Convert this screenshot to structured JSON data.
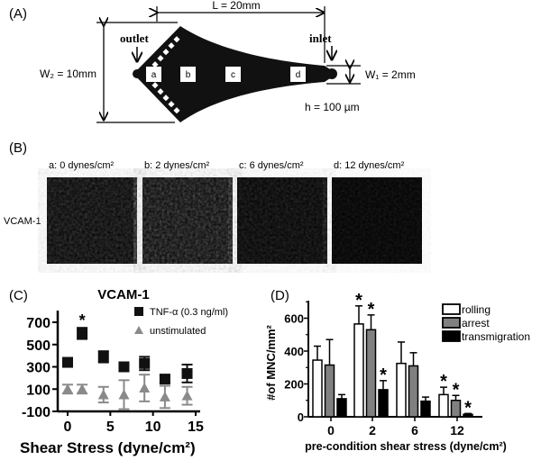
{
  "panelA": {
    "label": "(A)",
    "length": "L = 20mm",
    "outlet": "outlet",
    "inlet": "inlet",
    "w2": "W₂ = 10mm",
    "w1": "W₁ = 2mm",
    "height": "h = 100 µm",
    "regions": [
      "a",
      "b",
      "c",
      "d"
    ]
  },
  "panelB": {
    "label": "(B)",
    "row_label": "VCAM-1",
    "images": [
      {
        "caption": "a:  0 dynes/cm²",
        "brightness": 0.55
      },
      {
        "caption": "b:  2 dynes/cm²",
        "brightness": 0.75
      },
      {
        "caption": "c:  6 dynes/cm²",
        "brightness": 0.4
      },
      {
        "caption": "d:  12 dynes/cm²",
        "brightness": 0.25
      }
    ]
  },
  "chart_data": [
    {
      "panel": "(C)",
      "type": "scatter",
      "title": "VCAM-1",
      "xlabel": "Shear Stress (dyne/cm²)",
      "ylabel": "",
      "xlim": [
        0,
        15
      ],
      "ylim": [
        -100,
        700
      ],
      "xticks": [
        "0",
        "5",
        "10",
        "15"
      ],
      "yticks": [
        "700",
        "500",
        "300",
        "100",
        "-100"
      ],
      "legend": "top-right",
      "series": [
        {
          "name": "TNF-α (0.3 ng/ml)",
          "marker": "square",
          "color": "#111111",
          "x": [
            0,
            1.7,
            4.2,
            6.6,
            9,
            11.4,
            14
          ],
          "y": [
            340,
            600,
            390,
            300,
            330,
            190,
            240
          ],
          "err": [
            40,
            50,
            50,
            40,
            60,
            30,
            80
          ]
        },
        {
          "name": "unstimulated",
          "marker": "triangle",
          "color": "#8a8a8a",
          "x": [
            0,
            1.7,
            4.2,
            6.6,
            9,
            11.4,
            14
          ],
          "y": [
            100,
            100,
            50,
            50,
            110,
            30,
            40
          ],
          "err": [
            40,
            40,
            70,
            130,
            120,
            100,
            80
          ]
        }
      ],
      "annotations": [
        {
          "text": "*",
          "x": 1.7
        }
      ]
    },
    {
      "panel": "(D)",
      "type": "bar",
      "title": "",
      "xlabel": "pre-condition shear stress (dyne/cm²)",
      "ylabel": "#of MNC/mm²",
      "categories": [
        "0",
        "2",
        "6",
        "12"
      ],
      "ylim": [
        0,
        700
      ],
      "yticks": [
        "0",
        "200",
        "400",
        "600"
      ],
      "legend": "top-right",
      "series": [
        {
          "name": "rolling",
          "color": "#ffffff",
          "values": [
            345,
            565,
            325,
            135
          ],
          "err": [
            85,
            110,
            130,
            45
          ],
          "stars": [
            false,
            true,
            false,
            true
          ]
        },
        {
          "name": "arrest",
          "color": "#808080",
          "values": [
            315,
            530,
            310,
            100
          ],
          "err": [
            155,
            90,
            80,
            30
          ],
          "stars": [
            false,
            true,
            false,
            true
          ]
        },
        {
          "name": "transmigration",
          "color": "#000000",
          "values": [
            110,
            165,
            95,
            15
          ],
          "err": [
            25,
            55,
            25,
            5
          ],
          "stars": [
            false,
            true,
            false,
            true
          ]
        }
      ]
    }
  ]
}
